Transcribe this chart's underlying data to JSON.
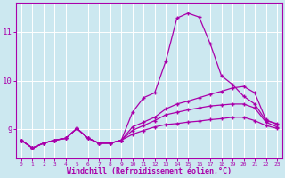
{
  "xlabel": "Windchill (Refroidissement éolien,°C)",
  "ylabel": "",
  "bg_color": "#cce8f0",
  "line_color": "#aa00aa",
  "grid_color": "#ffffff",
  "xlim": [
    -0.5,
    23.5
  ],
  "ylim": [
    8.4,
    11.6
  ],
  "yticks": [
    9,
    10,
    11
  ],
  "xticks": [
    0,
    1,
    2,
    3,
    4,
    5,
    6,
    7,
    8,
    9,
    10,
    11,
    12,
    13,
    14,
    15,
    16,
    17,
    18,
    19,
    20,
    21,
    22,
    23
  ],
  "line1_x": [
    0,
    1,
    2,
    3,
    4,
    5,
    6,
    7,
    8,
    9,
    10,
    11,
    12,
    13,
    14,
    15,
    16,
    17,
    18,
    19,
    20,
    21,
    22,
    23
  ],
  "line1_y": [
    8.78,
    8.62,
    8.72,
    8.78,
    8.82,
    9.02,
    8.82,
    8.72,
    8.72,
    8.78,
    9.35,
    9.65,
    9.75,
    10.4,
    11.28,
    11.38,
    11.3,
    10.75,
    10.1,
    9.92,
    9.68,
    9.52,
    9.18,
    9.12
  ],
  "line2_x": [
    0,
    1,
    2,
    3,
    4,
    5,
    6,
    7,
    8,
    9,
    10,
    11,
    12,
    13,
    14,
    15,
    16,
    17,
    18,
    19,
    20,
    21,
    22,
    23
  ],
  "line2_y": [
    8.78,
    8.62,
    8.72,
    8.78,
    8.82,
    9.02,
    8.82,
    8.72,
    8.72,
    8.78,
    9.05,
    9.15,
    9.25,
    9.42,
    9.52,
    9.58,
    9.65,
    9.72,
    9.78,
    9.85,
    9.88,
    9.75,
    9.2,
    9.1
  ],
  "line3_x": [
    0,
    1,
    2,
    3,
    4,
    5,
    6,
    7,
    8,
    9,
    10,
    11,
    12,
    13,
    14,
    15,
    16,
    17,
    18,
    19,
    20,
    21,
    22,
    23
  ],
  "line3_y": [
    8.78,
    8.62,
    8.72,
    8.78,
    8.82,
    9.02,
    8.82,
    8.72,
    8.72,
    8.78,
    8.98,
    9.08,
    9.18,
    9.3,
    9.35,
    9.4,
    9.44,
    9.48,
    9.5,
    9.52,
    9.52,
    9.44,
    9.15,
    9.05
  ],
  "line4_x": [
    0,
    1,
    2,
    3,
    4,
    5,
    6,
    7,
    8,
    9,
    10,
    11,
    12,
    13,
    14,
    15,
    16,
    17,
    18,
    19,
    20,
    21,
    22,
    23
  ],
  "line4_y": [
    8.78,
    8.62,
    8.72,
    8.78,
    8.82,
    9.02,
    8.82,
    8.72,
    8.72,
    8.78,
    8.9,
    8.98,
    9.05,
    9.1,
    9.12,
    9.15,
    9.17,
    9.2,
    9.22,
    9.25,
    9.25,
    9.18,
    9.08,
    9.02
  ]
}
